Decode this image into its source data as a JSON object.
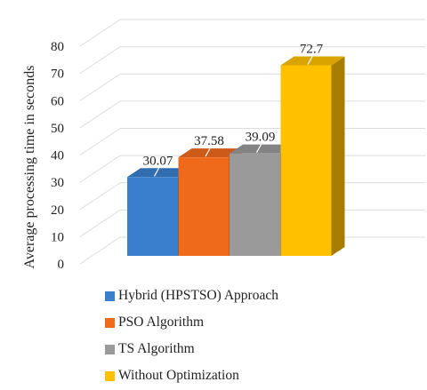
{
  "chart_data": {
    "type": "bar",
    "style": "3d",
    "categories": [
      "Hybrid (HPSTSO) Approach",
      "PSO Algorithm",
      "TS Algorithm",
      "Without Optimization"
    ],
    "values": [
      30.07,
      37.58,
      39.09,
      72.7
    ],
    "data_labels": [
      "30.07",
      "37.58",
      "39.09",
      "72.7"
    ],
    "ylabel": "Average processing time in seconds",
    "ylim": [
      0,
      80
    ],
    "yticks": [
      0,
      10,
      20,
      30,
      40,
      50,
      60,
      70,
      80
    ],
    "grid": true,
    "legend_position": "bottom",
    "colors": [
      "#3a7fcd",
      "#f06a1c",
      "#9a9a9a",
      "#ffc000"
    ]
  }
}
